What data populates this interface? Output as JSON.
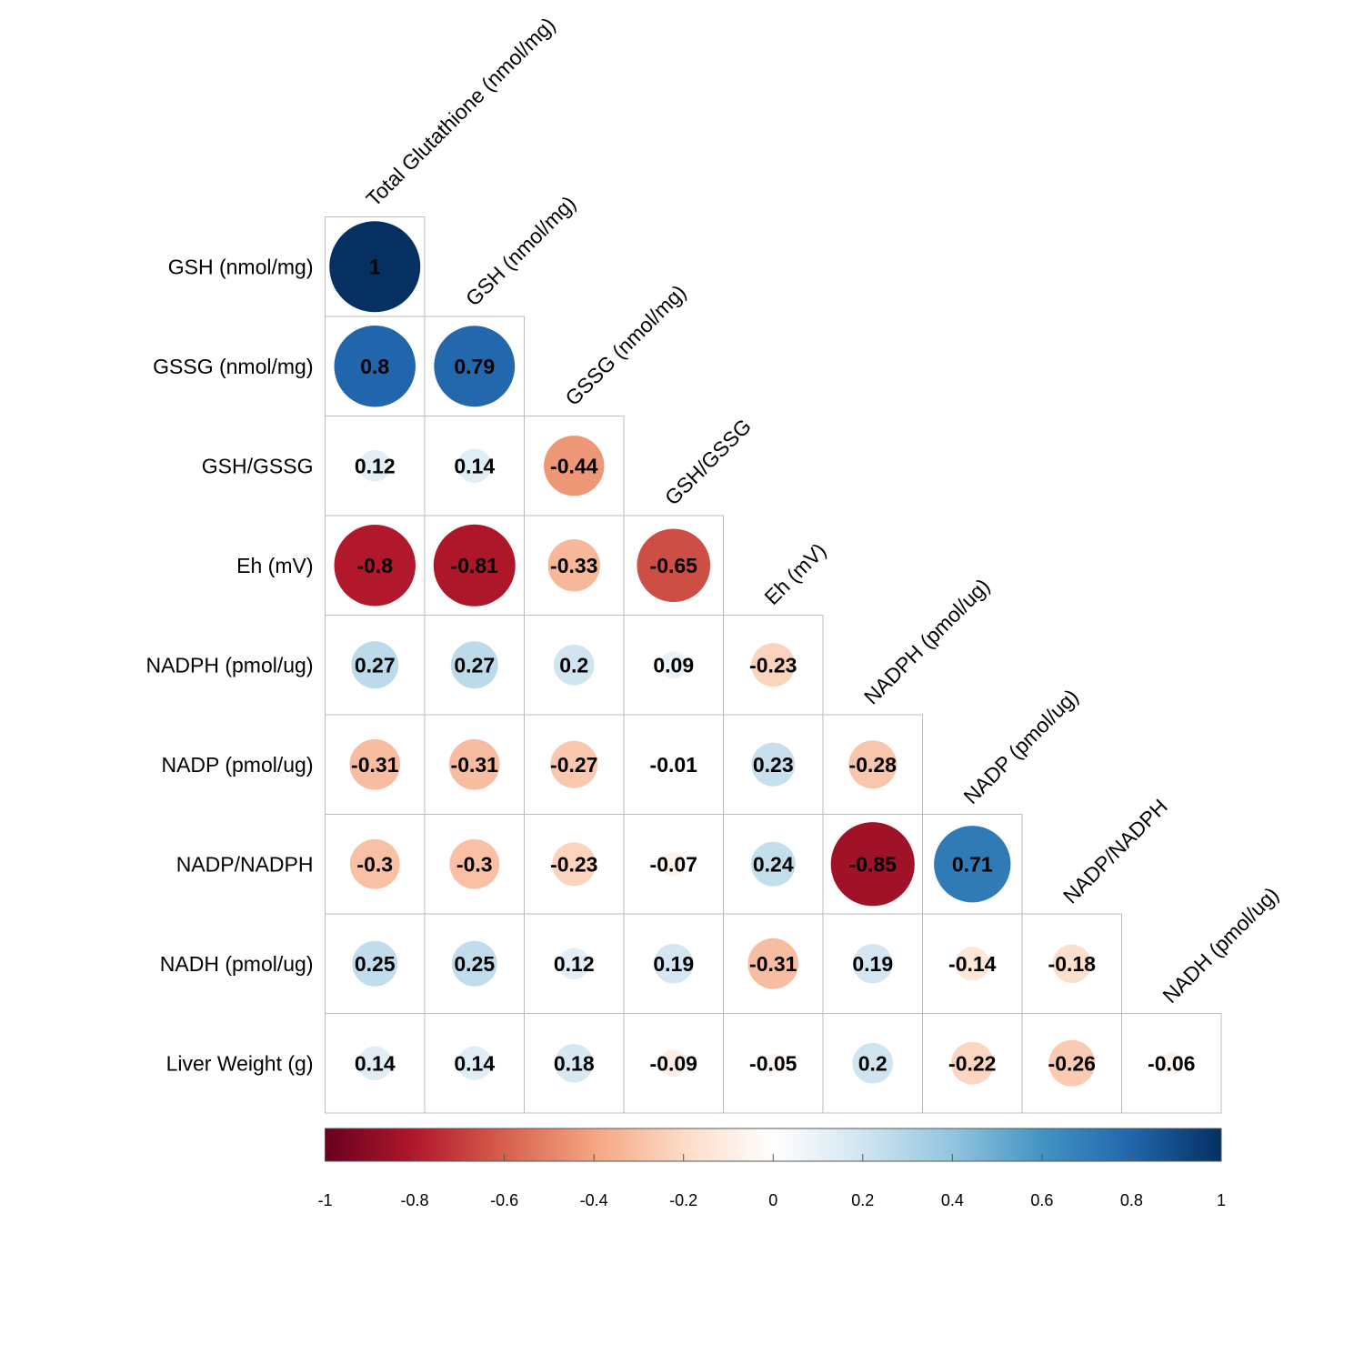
{
  "chart_data": {
    "type": "heatmap",
    "title": "",
    "style": "lower-triangular correlation matrix, circle glyphs sized and colored by correlation",
    "column_labels": [
      "Total Glutathione (nmol/mg)",
      "GSH (nmol/mg)",
      "GSSG (nmol/mg)",
      "GSH/GSSG",
      "Eh (mV)",
      "NADPH (pmol/ug)",
      "NADP (pmol/ug)",
      "NADP/NADPH",
      "NADH (pmol/ug)"
    ],
    "row_labels": [
      "GSH (nmol/mg)",
      "GSSG (nmol/mg)",
      "GSH/GSSG",
      "Eh (mV)",
      "NADPH (pmol/ug)",
      "NADP (pmol/ug)",
      "NADP/NADPH",
      "NADH (pmol/ug)",
      "Liver Weight (g)"
    ],
    "values": [
      [
        1
      ],
      [
        0.8,
        0.79
      ],
      [
        0.12,
        0.14,
        -0.44
      ],
      [
        -0.8,
        -0.81,
        -0.33,
        -0.65
      ],
      [
        0.27,
        0.27,
        0.2,
        0.09,
        -0.23
      ],
      [
        -0.31,
        -0.31,
        -0.27,
        -0.01,
        0.23,
        -0.28
      ],
      [
        -0.3,
        -0.3,
        -0.23,
        -0.07,
        0.24,
        -0.85,
        0.71
      ],
      [
        0.25,
        0.25,
        0.12,
        0.19,
        -0.31,
        0.19,
        -0.14,
        -0.18
      ],
      [
        0.14,
        0.14,
        0.18,
        -0.09,
        -0.05,
        0.2,
        -0.22,
        -0.26,
        -0.06
      ]
    ],
    "colorbar": {
      "range": [
        -1,
        1
      ],
      "ticks": [
        "-1",
        "-0.8",
        "-0.6",
        "-0.4",
        "-0.2",
        "0",
        "0.2",
        "0.4",
        "0.6",
        "0.8",
        "1"
      ],
      "colors": [
        "#67001f",
        "#b2182b",
        "#d6604d",
        "#f4a582",
        "#fddbc7",
        "#ffffff",
        "#d1e5f0",
        "#92c5de",
        "#4393c3",
        "#2166ac",
        "#053061"
      ]
    },
    "grid": true,
    "legend": "bottom"
  }
}
